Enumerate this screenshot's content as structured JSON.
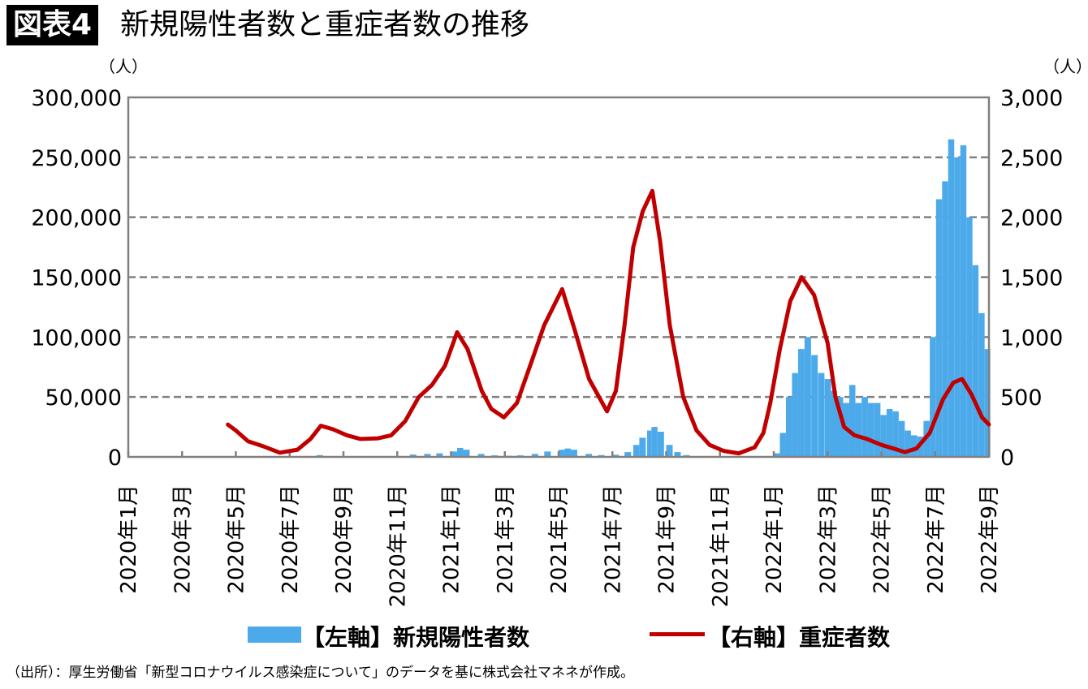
{
  "figure_label": "図表4",
  "title": "新規陽性者数と重症者数の推移",
  "footer": "（出所）：厚生労働省「新型コロナウイルス感染症について」のデータを基に株式会社マネネが作成。",
  "chart_data": {
    "type": "bar+line",
    "left_unit": "（人）",
    "right_unit": "（人）",
    "left_ylim": [
      0,
      300000
    ],
    "right_ylim": [
      0,
      3000
    ],
    "left_ticks": [
      "0",
      "50,000",
      "100,000",
      "150,000",
      "200,000",
      "250,000",
      "300,000"
    ],
    "right_ticks": [
      "0",
      "500",
      "1,000",
      "1,500",
      "2,000",
      "2,500",
      "3,000"
    ],
    "xlim": [
      "2020-01",
      "2022-09"
    ],
    "x_ticks": [
      "2020年1月",
      "2020年3月",
      "2020年5月",
      "2020年7月",
      "2020年9月",
      "2020年11月",
      "2021年1月",
      "2021年3月",
      "2021年5月",
      "2021年7月",
      "2021年9月",
      "2021年11月",
      "2022年1月",
      "2022年3月",
      "2022年5月",
      "2022年7月",
      "2022年9月"
    ],
    "grid": "horizontal dashed",
    "legend_placement": "bottom",
    "series": [
      {
        "name": "【左軸】新規陽性者数",
        "type": "bar",
        "axis": "left",
        "color": "#4DAAEA",
        "points": [
          [
            "2020-04-10",
            600
          ],
          [
            "2020-08-01",
            1500
          ],
          [
            "2020-11-15",
            2000
          ],
          [
            "2020-12-01",
            2500
          ],
          [
            "2020-12-15",
            3000
          ],
          [
            "2021-01-01",
            4500
          ],
          [
            "2021-01-08",
            7500
          ],
          [
            "2021-01-15",
            6000
          ],
          [
            "2021-02-01",
            2500
          ],
          [
            "2021-02-15",
            1300
          ],
          [
            "2021-03-01",
            1000
          ],
          [
            "2021-03-15",
            1300
          ],
          [
            "2021-04-01",
            2500
          ],
          [
            "2021-04-15",
            4500
          ],
          [
            "2021-05-01",
            6000
          ],
          [
            "2021-05-08",
            7000
          ],
          [
            "2021-05-15",
            6000
          ],
          [
            "2021-06-01",
            2500
          ],
          [
            "2021-06-15",
            1500
          ],
          [
            "2021-07-01",
            1800
          ],
          [
            "2021-07-15",
            4000
          ],
          [
            "2021-07-25",
            10000
          ],
          [
            "2021-08-01",
            16000
          ],
          [
            "2021-08-10",
            22000
          ],
          [
            "2021-08-15",
            25000
          ],
          [
            "2021-08-22",
            21000
          ],
          [
            "2021-09-01",
            10000
          ],
          [
            "2021-09-10",
            4000
          ],
          [
            "2021-09-20",
            1500
          ],
          [
            "2021-10-01",
            600
          ],
          [
            "2021-11-01",
            200
          ],
          [
            "2021-12-01",
            150
          ],
          [
            "2021-12-25",
            500
          ],
          [
            "2022-01-01",
            3000
          ],
          [
            "2022-01-08",
            20000
          ],
          [
            "2022-01-15",
            50000
          ],
          [
            "2022-01-22",
            70000
          ],
          [
            "2022-01-29",
            90000
          ],
          [
            "2022-02-05",
            100000
          ],
          [
            "2022-02-12",
            85000
          ],
          [
            "2022-02-19",
            70000
          ],
          [
            "2022-02-26",
            65000
          ],
          [
            "2022-03-05",
            55000
          ],
          [
            "2022-03-12",
            50000
          ],
          [
            "2022-03-19",
            45000
          ],
          [
            "2022-03-26",
            60000
          ],
          [
            "2022-04-02",
            45000
          ],
          [
            "2022-04-09",
            50000
          ],
          [
            "2022-04-16",
            45000
          ],
          [
            "2022-04-23",
            45000
          ],
          [
            "2022-04-30",
            35000
          ],
          [
            "2022-05-07",
            40000
          ],
          [
            "2022-05-14",
            38000
          ],
          [
            "2022-05-21",
            30000
          ],
          [
            "2022-05-28",
            22000
          ],
          [
            "2022-06-04",
            18000
          ],
          [
            "2022-06-11",
            17000
          ],
          [
            "2022-06-18",
            30000
          ],
          [
            "2022-06-25",
            100000
          ],
          [
            "2022-07-02",
            215000
          ],
          [
            "2022-07-09",
            230000
          ],
          [
            "2022-07-16",
            265000
          ],
          [
            "2022-07-23",
            250000
          ],
          [
            "2022-07-30",
            260000
          ],
          [
            "2022-08-06",
            200000
          ],
          [
            "2022-08-13",
            160000
          ],
          [
            "2022-08-20",
            120000
          ],
          [
            "2022-08-27",
            90000
          ]
        ]
      },
      {
        "name": "【右軸】重症者数",
        "type": "line",
        "axis": "right",
        "color": "#C00000",
        "points": [
          [
            "2020-04-22",
            270
          ],
          [
            "2020-05-01",
            220
          ],
          [
            "2020-05-15",
            130
          ],
          [
            "2020-06-01",
            90
          ],
          [
            "2020-06-20",
            35
          ],
          [
            "2020-07-10",
            60
          ],
          [
            "2020-07-25",
            150
          ],
          [
            "2020-08-06",
            260
          ],
          [
            "2020-08-20",
            230
          ],
          [
            "2020-09-05",
            180
          ],
          [
            "2020-09-20",
            150
          ],
          [
            "2020-10-10",
            155
          ],
          [
            "2020-10-25",
            180
          ],
          [
            "2020-11-10",
            300
          ],
          [
            "2020-11-25",
            500
          ],
          [
            "2020-12-10",
            600
          ],
          [
            "2020-12-25",
            760
          ],
          [
            "2021-01-08",
            1040
          ],
          [
            "2021-01-20",
            900
          ],
          [
            "2021-02-05",
            550
          ],
          [
            "2021-02-15",
            400
          ],
          [
            "2021-02-28",
            330
          ],
          [
            "2021-03-15",
            450
          ],
          [
            "2021-04-01",
            800
          ],
          [
            "2021-04-15",
            1100
          ],
          [
            "2021-05-05",
            1400
          ],
          [
            "2021-05-20",
            1050
          ],
          [
            "2021-06-05",
            650
          ],
          [
            "2021-06-25",
            380
          ],
          [
            "2021-07-05",
            550
          ],
          [
            "2021-07-15",
            1100
          ],
          [
            "2021-07-25",
            1750
          ],
          [
            "2021-08-05",
            2050
          ],
          [
            "2021-08-16",
            2220
          ],
          [
            "2021-08-25",
            1800
          ],
          [
            "2021-09-05",
            1100
          ],
          [
            "2021-09-20",
            500
          ],
          [
            "2021-10-05",
            220
          ],
          [
            "2021-10-20",
            100
          ],
          [
            "2021-11-05",
            50
          ],
          [
            "2021-11-22",
            30
          ],
          [
            "2021-12-10",
            80
          ],
          [
            "2021-12-20",
            200
          ],
          [
            "2021-12-28",
            450
          ],
          [
            "2022-01-08",
            900
          ],
          [
            "2022-01-20",
            1300
          ],
          [
            "2022-02-02",
            1500
          ],
          [
            "2022-02-15",
            1350
          ],
          [
            "2022-03-01",
            950
          ],
          [
            "2022-03-10",
            500
          ],
          [
            "2022-03-20",
            250
          ],
          [
            "2022-04-01",
            180
          ],
          [
            "2022-04-15",
            150
          ],
          [
            "2022-05-01",
            100
          ],
          [
            "2022-05-15",
            70
          ],
          [
            "2022-05-28",
            40
          ],
          [
            "2022-06-10",
            70
          ],
          [
            "2022-06-25",
            200
          ],
          [
            "2022-07-10",
            480
          ],
          [
            "2022-07-22",
            620
          ],
          [
            "2022-08-01",
            650
          ],
          [
            "2022-08-12",
            520
          ],
          [
            "2022-08-24",
            330
          ],
          [
            "2022-09-01",
            270
          ]
        ]
      }
    ]
  }
}
